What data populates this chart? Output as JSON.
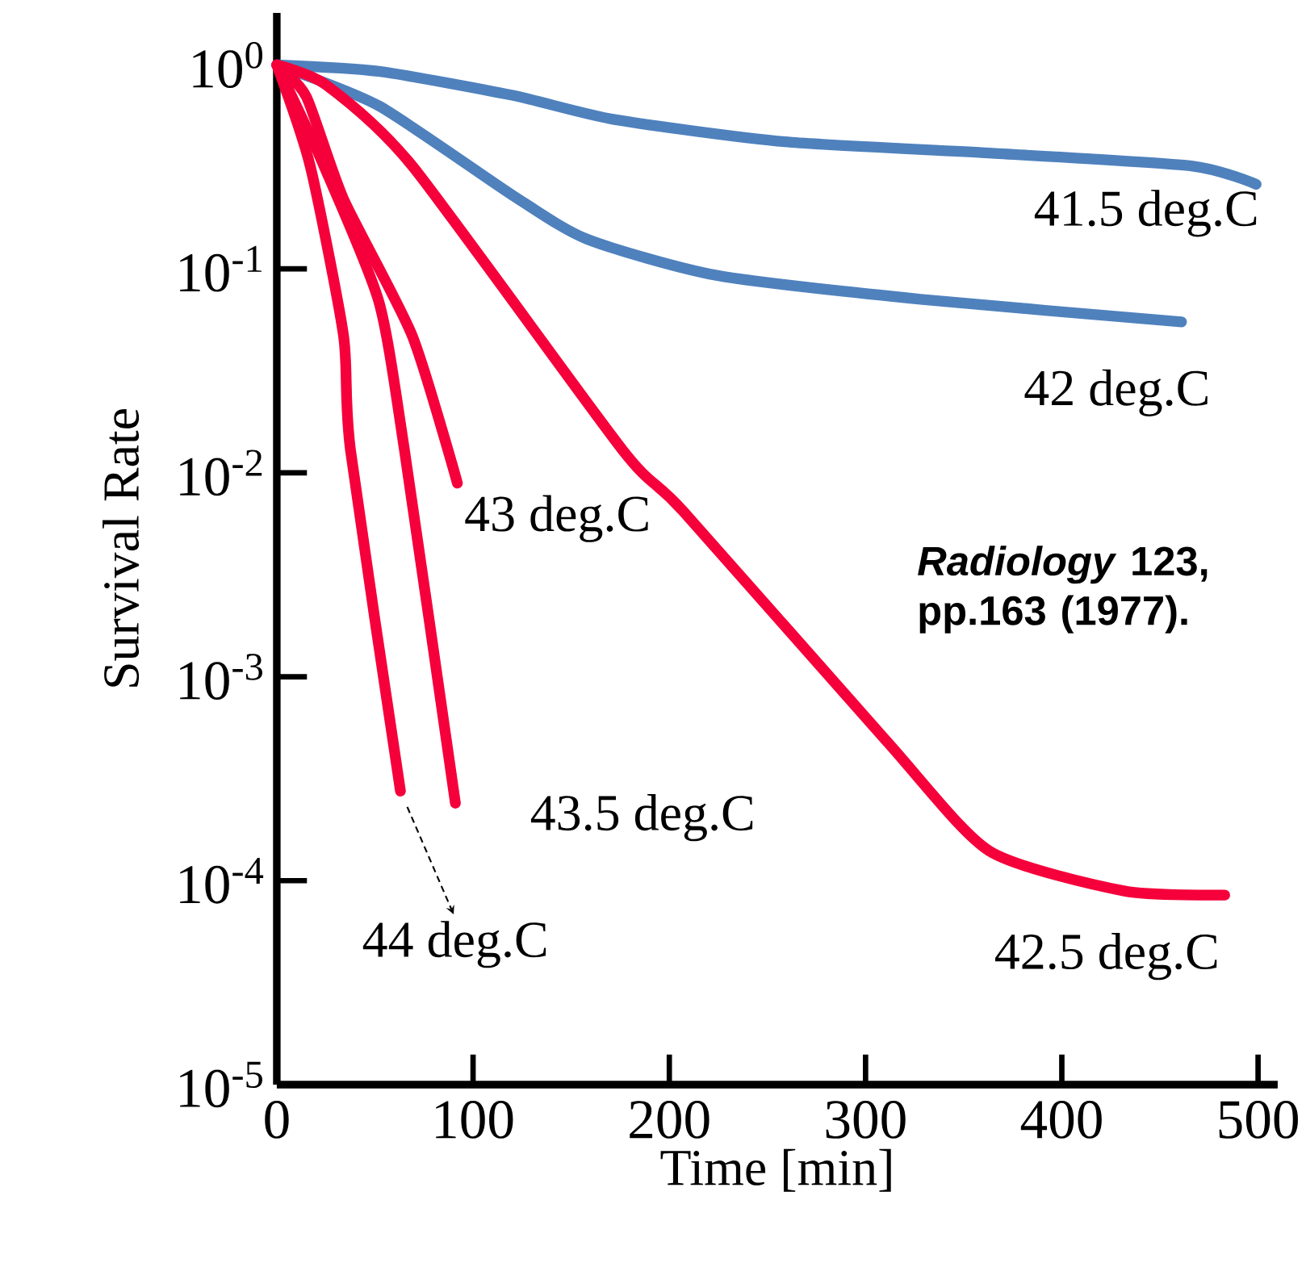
{
  "chart_data": {
    "type": "line",
    "xlabel": "Time [min]",
    "ylabel": "Survival Rate",
    "log": "y",
    "xlim": [
      0,
      510
    ],
    "ylim": [
      1e-05,
      1.8
    ],
    "xticks": [
      0,
      100,
      200,
      300,
      400,
      500
    ],
    "yticks": [
      {
        "value": 1,
        "label": "10$^{0}$"
      },
      {
        "value": 0.1,
        "label": "10$^{-1}$"
      },
      {
        "value": 0.01,
        "label": "10$^{-2}$"
      },
      {
        "value": 0.001,
        "label": "10$^{-3}$"
      },
      {
        "value": 0.0001,
        "label": "10$^{-4}$"
      },
      {
        "value": 1e-05,
        "label": "10$^{-5}$"
      }
    ],
    "grid": false,
    "legend": false,
    "marker": "none",
    "line_style": "solid",
    "series": [
      {
        "name": "41.5 deg.C",
        "color": "#4f81bd",
        "x": [
          0,
          52,
          120,
          172,
          259,
          363,
          466,
          499
        ],
        "values": [
          1,
          0.93,
          0.71,
          0.54,
          0.42,
          0.37,
          0.32,
          0.26
        ]
      },
      {
        "name": "42 deg.C",
        "color": "#4f81bd",
        "x": [
          0,
          52,
          120,
          158,
          224,
          328,
          461
        ],
        "values": [
          1,
          0.63,
          0.23,
          0.14,
          0.093,
          0.071,
          0.055
        ]
      },
      {
        "name": "42.5 deg.C",
        "color": "#f5003a",
        "x": [
          0,
          25,
          69,
          176,
          207,
          311,
          363,
          432,
          483
        ],
        "values": [
          1,
          0.8,
          0.32,
          0.013,
          0.0065,
          0.00048,
          0.00014,
          8.9e-05,
          8.5e-05
        ]
      },
      {
        "name": "43 deg.C",
        "color": "#f5003a",
        "x": [
          0,
          15,
          34,
          69,
          92
        ],
        "values": [
          1,
          0.7,
          0.22,
          0.047,
          0.0089
        ]
      },
      {
        "name": "43.5 deg.C",
        "color": "#f5003a",
        "x": [
          0,
          24,
          52,
          65,
          91
        ],
        "values": [
          1,
          0.32,
          0.069,
          0.013,
          0.00024
        ]
      },
      {
        "name": "44 deg.C",
        "color": "#f5003a",
        "x": [
          0,
          17,
          34,
          37.5,
          63
        ],
        "values": [
          1,
          0.32,
          0.047,
          0.013,
          0.000275
        ]
      }
    ],
    "annotations": [
      "*Radiology* 123, pp.163 (1977)."
    ]
  }
}
